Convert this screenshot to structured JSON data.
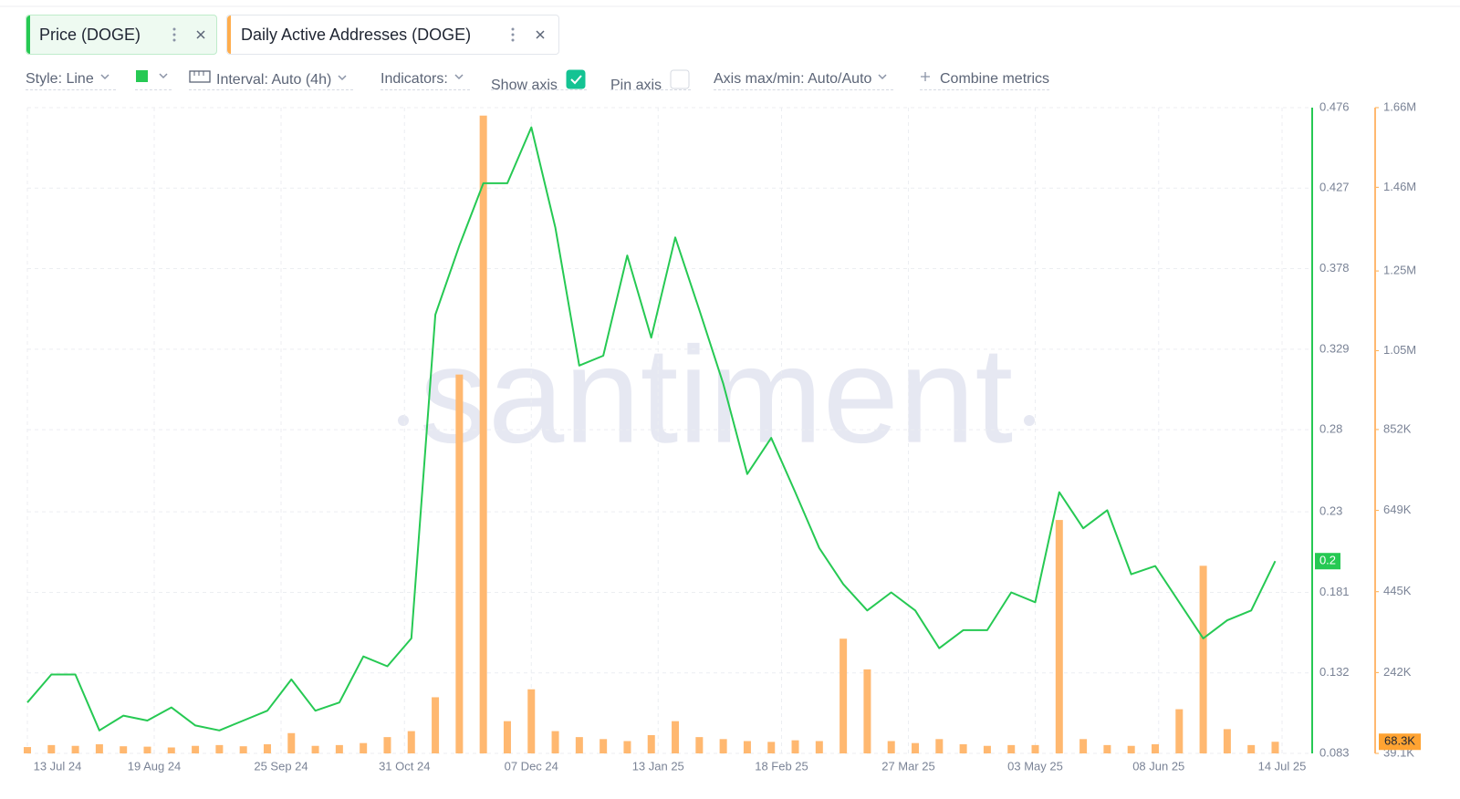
{
  "toolbar": {
    "style": "Style: Line",
    "interval": "Interval: Auto (4h)",
    "indicators": "Indicators:",
    "show_axis": {
      "label": "Show axis",
      "checked": true
    },
    "pin_axis": {
      "label": "Pin axis",
      "checked": false
    },
    "axis_range": "Axis max/min: Auto/Auto",
    "combine": "Combine metrics"
  },
  "watermark": "santiment",
  "chart_data": {
    "type": "line-bar",
    "grid": true,
    "x": [
      "2024-07-13",
      "2024-07-20",
      "2024-07-27",
      "2024-08-03",
      "2024-08-10",
      "2024-08-17",
      "2024-08-24",
      "2024-08-31",
      "2024-09-07",
      "2024-09-14",
      "2024-09-21",
      "2024-09-28",
      "2024-10-05",
      "2024-10-12",
      "2024-10-19",
      "2024-10-26",
      "2024-11-02",
      "2024-11-09",
      "2024-11-16",
      "2024-11-23",
      "2024-11-30",
      "2024-12-07",
      "2024-12-14",
      "2024-12-21",
      "2024-12-28",
      "2025-01-04",
      "2025-01-11",
      "2025-01-18",
      "2025-01-25",
      "2025-02-01",
      "2025-02-08",
      "2025-02-15",
      "2025-02-22",
      "2025-03-01",
      "2025-03-08",
      "2025-03-15",
      "2025-03-22",
      "2025-03-29",
      "2025-04-05",
      "2025-04-12",
      "2025-04-19",
      "2025-04-26",
      "2025-05-03",
      "2025-05-10",
      "2025-05-17",
      "2025-05-24",
      "2025-05-31",
      "2025-06-07",
      "2025-06-14",
      "2025-06-21",
      "2025-06-28",
      "2025-07-05",
      "2025-07-12"
    ],
    "xlim": [
      "2024-07-13",
      "2025-07-14"
    ],
    "xticks": [
      {
        "value": "2024-07-13",
        "label": "13 Jul 24"
      },
      {
        "value": "2024-08-19",
        "label": "19 Aug 24"
      },
      {
        "value": "2024-09-25",
        "label": "25 Sep 24"
      },
      {
        "value": "2024-10-31",
        "label": "31 Oct 24"
      },
      {
        "value": "2024-12-07",
        "label": "07 Dec 24"
      },
      {
        "value": "2025-01-13",
        "label": "13 Jan 25"
      },
      {
        "value": "2025-02-18",
        "label": "18 Feb 25"
      },
      {
        "value": "2025-03-27",
        "label": "27 Mar 25"
      },
      {
        "value": "2025-05-03",
        "label": "03 May 25"
      },
      {
        "value": "2025-06-08",
        "label": "08 Jun 25"
      },
      {
        "value": "2025-07-14",
        "label": "14 Jul 25"
      }
    ],
    "ylim": [
      0.083,
      0.476
    ],
    "yticks": [
      0.083,
      0.132,
      0.181,
      0.23,
      0.28,
      0.329,
      0.378,
      0.427,
      0.476
    ],
    "y2lim": [
      39100,
      1660000
    ],
    "y2ticks": [
      {
        "value": 39100,
        "label": "39.1K"
      },
      {
        "value": 242000,
        "label": "242K"
      },
      {
        "value": 445000,
        "label": "445K"
      },
      {
        "value": 649000,
        "label": "649K"
      },
      {
        "value": 852000,
        "label": "852K"
      },
      {
        "value": 1050000,
        "label": "1.05M"
      },
      {
        "value": 1250000,
        "label": "1.25M"
      },
      {
        "value": 1460000,
        "label": "1.46M"
      },
      {
        "value": 1660000,
        "label": "1.66M"
      }
    ],
    "series": [
      {
        "name": "Price (DOGE)",
        "type": "line",
        "color": "#26c953",
        "last_value": 0.2,
        "values": [
          0.114,
          0.131,
          0.131,
          0.097,
          0.106,
          0.103,
          0.111,
          0.1,
          0.097,
          0.103,
          0.109,
          0.128,
          0.109,
          0.114,
          0.142,
          0.136,
          0.153,
          0.35,
          0.392,
          0.43,
          0.43,
          0.464,
          0.403,
          0.319,
          0.325,
          0.386,
          0.336,
          0.397,
          0.353,
          0.308,
          0.253,
          0.275,
          0.242,
          0.208,
          0.186,
          0.17,
          0.181,
          0.17,
          0.147,
          0.158,
          0.158,
          0.181,
          0.175,
          0.242,
          0.22,
          0.231,
          0.192,
          0.197,
          0.175,
          0.153,
          0.164,
          0.17,
          0.2
        ]
      },
      {
        "name": "Daily Active Addresses (DOGE)",
        "type": "bar",
        "axis": "y2",
        "color": "#ffb870",
        "last_value": {
          "value": 68300,
          "label": "68.3K"
        },
        "values": [
          55000,
          60000,
          58000,
          62000,
          57000,
          56000,
          54000,
          58000,
          60000,
          57000,
          62000,
          90000,
          58000,
          60000,
          65000,
          80000,
          95000,
          180000,
          990000,
          1640000,
          120000,
          200000,
          95000,
          80000,
          75000,
          70000,
          85000,
          120000,
          80000,
          75000,
          70000,
          68000,
          72000,
          70000,
          327000,
          250000,
          70000,
          65000,
          75000,
          62000,
          58000,
          60000,
          60000,
          625000,
          75000,
          60000,
          58000,
          62000,
          150000,
          510000,
          100000,
          60000,
          68300
        ]
      }
    ]
  }
}
